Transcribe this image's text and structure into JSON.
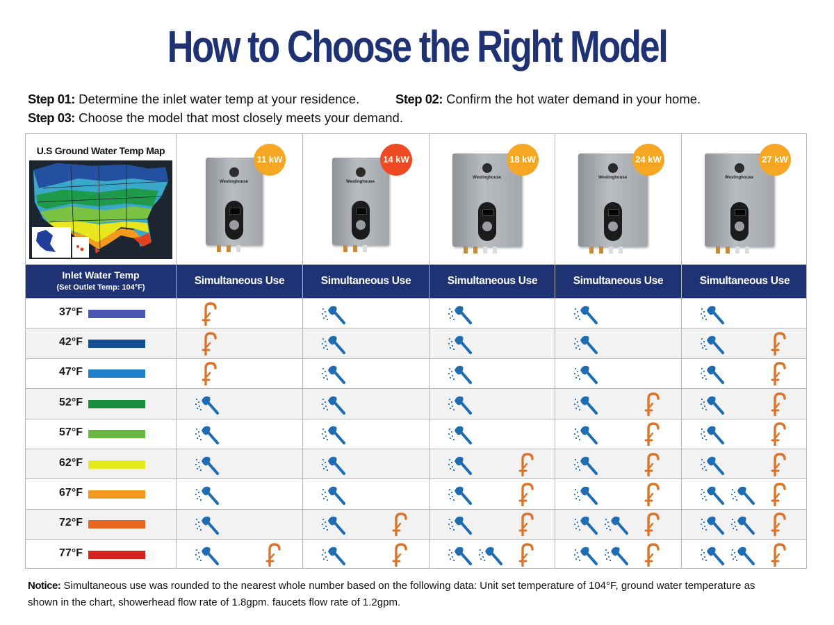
{
  "title": "How to Choose the Right Model",
  "steps": {
    "s1_label": "Step  01:",
    "s1_text": " Determine the inlet water temp at your residence.",
    "s2_label": "Step 02:",
    "s2_text": " Confirm the hot water demand in your home.",
    "s3_label": "Step 03:",
    "s3_text": " Choose the model that most closely meets your demand."
  },
  "map_title": "U.S Ground Water Temp Map",
  "header": {
    "inlet_line1": "Inlet Water Temp",
    "inlet_line2": "(Set Outlet Temp: 104°F)",
    "simultaneous": "Simultaneous Use"
  },
  "brand": "Westinghouse",
  "models": [
    {
      "label": "11 kW",
      "badge_color": "#f5a623"
    },
    {
      "label": "14 kW",
      "badge_color": "#ef4a23"
    },
    {
      "label": "18 kW",
      "badge_color": "#f5a623"
    },
    {
      "label": "24 kW",
      "badge_color": "#f5a623"
    },
    {
      "label": "27 kW",
      "badge_color": "#f5a623"
    }
  ],
  "rows": [
    {
      "temp": "37°F",
      "color": "#4a57b0",
      "uses": [
        [
          "faucet"
        ],
        [
          "shower"
        ],
        [
          "shower"
        ],
        [
          "shower"
        ],
        [
          "shower"
        ]
      ]
    },
    {
      "temp": "42°F",
      "color": "#134e95",
      "uses": [
        [
          "faucet"
        ],
        [
          "shower"
        ],
        [
          "shower"
        ],
        [
          "shower"
        ],
        [
          "shower",
          "faucet"
        ]
      ]
    },
    {
      "temp": "47°F",
      "color": "#1f7fc7",
      "uses": [
        [
          "faucet"
        ],
        [
          "shower"
        ],
        [
          "shower"
        ],
        [
          "shower"
        ],
        [
          "shower",
          "faucet"
        ]
      ]
    },
    {
      "temp": "52°F",
      "color": "#1a8c3e",
      "uses": [
        [
          "shower"
        ],
        [
          "shower"
        ],
        [
          "shower"
        ],
        [
          "shower",
          "faucet"
        ],
        [
          "shower",
          "faucet"
        ]
      ]
    },
    {
      "temp": "57°F",
      "color": "#6ab642",
      "uses": [
        [
          "shower"
        ],
        [
          "shower"
        ],
        [
          "shower"
        ],
        [
          "shower",
          "faucet"
        ],
        [
          "shower",
          "faucet"
        ]
      ]
    },
    {
      "temp": "62°F",
      "color": "#e4ea1c",
      "uses": [
        [
          "shower"
        ],
        [
          "shower"
        ],
        [
          "shower",
          "faucet"
        ],
        [
          "shower",
          "faucet"
        ],
        [
          "shower",
          "faucet"
        ]
      ]
    },
    {
      "temp": "67°F",
      "color": "#f39a1e",
      "uses": [
        [
          "shower"
        ],
        [
          "shower"
        ],
        [
          "shower",
          "faucet"
        ],
        [
          "shower",
          "faucet"
        ],
        [
          "shower",
          "shower",
          "faucet"
        ]
      ]
    },
    {
      "temp": "72°F",
      "color": "#e8661f",
      "uses": [
        [
          "shower"
        ],
        [
          "shower",
          "faucet"
        ],
        [
          "shower",
          "faucet"
        ],
        [
          "shower",
          "shower",
          "faucet"
        ],
        [
          "shower",
          "shower",
          "faucet"
        ]
      ]
    },
    {
      "temp": "77°F",
      "color": "#d4231f",
      "uses": [
        [
          "shower",
          "faucet"
        ],
        [
          "shower",
          "faucet"
        ],
        [
          "shower",
          "shower",
          "faucet"
        ],
        [
          "shower",
          "shower",
          "faucet"
        ],
        [
          "shower",
          "shower",
          "faucet"
        ]
      ]
    }
  ],
  "colors": {
    "navy": "#1f3273",
    "shower": "#1e6db3",
    "faucet": "#d9742a"
  },
  "notice": {
    "label": "Notice:",
    "line1": " Simultaneous use was rounded to the nearest whole number based on the following data: Unit set temperature of 104°F, ground water temperature as",
    "line2": "shown in the chart, showerhead flow rate of 1.8gpm. faucets flow rate of 1.2gpm."
  }
}
